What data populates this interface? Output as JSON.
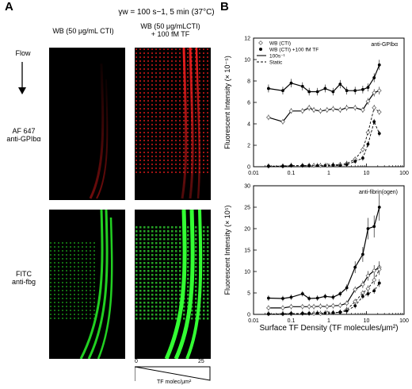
{
  "panel_a": {
    "letter": "A",
    "condition": "γw = 100 s−1, 5 min (37°C)",
    "col1": "WB (50 μg/mL CTI)",
    "col2_line1": "WB (50 μg/mLCTI)",
    "col2_line2": "+ 100 fM TF",
    "flow": "Flow",
    "row1_line1": "AF 647",
    "row1_line2": "anti-GPIbα",
    "row2_line1": "FITC",
    "row2_line2": "anti-fbg",
    "scale_min": "0",
    "scale_max": "25",
    "scale_label": "TF molec/μm²",
    "colors": {
      "red": "#e01818",
      "green": "#22d022"
    }
  },
  "panel_b": {
    "letter": "B",
    "xlabel": "Surface TF Density (TF molecules/μm²)"
  },
  "chart_data": [
    {
      "type": "line",
      "annotation": "anti-GPIbα",
      "ylabel": "Fluorescent Intensity (× 10⁻⁵)",
      "xscale": "log",
      "xlim": [
        0.01,
        100
      ],
      "ylim": [
        0,
        12
      ],
      "xticks": [
        "0.01",
        "0.1",
        "1",
        "10",
        "100"
      ],
      "yticks": [
        0,
        2,
        4,
        6,
        8,
        10,
        12
      ],
      "legend": [
        {
          "label": "WB (CTI)",
          "marker": "open-diamond"
        },
        {
          "label": "WB (CTI) +100 fM TF",
          "marker": "filled-circle"
        },
        {
          "label": "100s⁻¹",
          "line": "solid"
        },
        {
          "label": "Static",
          "line": "dashed"
        }
      ],
      "series": [
        {
          "name": "WB (CTI) 100s⁻¹",
          "marker": "open",
          "dash": false,
          "x": [
            0.025,
            0.06,
            0.1,
            0.2,
            0.3,
            0.4,
            0.6,
            0.9,
            1.3,
            2.0,
            3.0,
            5.0,
            8.0,
            11,
            16,
            22
          ],
          "y": [
            4.6,
            4.2,
            5.2,
            5.2,
            5.5,
            5.3,
            5.2,
            5.3,
            5.4,
            5.3,
            5.5,
            5.5,
            5.3,
            6.1,
            6.9,
            7.1
          ]
        },
        {
          "name": "WB (CTI) +100 fM TF 100s⁻¹",
          "marker": "filled",
          "dash": false,
          "x": [
            0.025,
            0.06,
            0.1,
            0.2,
            0.3,
            0.5,
            0.8,
            1.3,
            2.0,
            3.0,
            5.0,
            8.0,
            11,
            16,
            22
          ],
          "y": [
            7.3,
            7.1,
            7.8,
            7.5,
            7.0,
            7.0,
            7.3,
            7.0,
            7.7,
            7.1,
            7.1,
            7.2,
            7.4,
            8.3,
            9.5
          ]
        },
        {
          "name": "WB (CTI) Static",
          "marker": "open",
          "dash": true,
          "x": [
            0.025,
            0.06,
            0.1,
            0.2,
            0.3,
            0.4,
            0.6,
            0.9,
            1.3,
            2.0,
            3.0,
            5.0,
            8.0,
            11,
            16,
            22
          ],
          "y": [
            0.05,
            0.05,
            0.1,
            0.1,
            0.1,
            0.1,
            0.1,
            0.1,
            0.15,
            0.2,
            0.3,
            0.7,
            1.6,
            3.2,
            5.5,
            5.1
          ]
        },
        {
          "name": "WB (CTI) +100 fM TF Static",
          "marker": "filled",
          "dash": true,
          "x": [
            0.025,
            0.06,
            0.1,
            0.2,
            0.3,
            0.5,
            0.8,
            1.3,
            2.0,
            3.0,
            5.0,
            8.0,
            11,
            16,
            22
          ],
          "y": [
            0.05,
            0.05,
            0.1,
            0.1,
            0.1,
            0.1,
            0.1,
            0.15,
            0.1,
            0.2,
            0.5,
            0.8,
            2.1,
            4.2,
            3.1
          ]
        }
      ]
    },
    {
      "type": "line",
      "annotation": "anti-fibrin(ogen)",
      "ylabel": "Fluorescent Intensity (× 10⁵)",
      "xscale": "log",
      "xlim": [
        0.01,
        100
      ],
      "ylim": [
        0,
        30
      ],
      "xticks": [
        "0.01",
        "0.1",
        "1",
        "10",
        "100"
      ],
      "yticks": [
        0,
        5,
        10,
        15,
        20,
        25,
        30
      ],
      "series": [
        {
          "name": "WB (CTI) 100s⁻¹",
          "marker": "open",
          "dash": false,
          "x": [
            0.025,
            0.06,
            0.1,
            0.2,
            0.3,
            0.4,
            0.6,
            0.9,
            1.3,
            2.0,
            3.0,
            5.0,
            8.0,
            11,
            16,
            22
          ],
          "y": [
            1.5,
            1.5,
            1.8,
            1.8,
            1.8,
            1.8,
            1.9,
            1.8,
            2.0,
            2.1,
            2.6,
            5.8,
            7.0,
            9.0,
            10.2,
            11.0
          ]
        },
        {
          "name": "WB (CTI) +100 fM TF 100s⁻¹",
          "marker": "filled",
          "dash": false,
          "x": [
            0.025,
            0.06,
            0.1,
            0.2,
            0.3,
            0.5,
            0.8,
            1.3,
            2.0,
            3.0,
            5.0,
            8.0,
            11,
            16,
            22
          ],
          "y": [
            3.8,
            3.7,
            4.0,
            4.8,
            3.7,
            3.8,
            4.2,
            4.0,
            4.8,
            6.2,
            11.0,
            14.0,
            20.0,
            20.5,
            25.0
          ]
        },
        {
          "name": "WB (CTI) Static",
          "marker": "open",
          "dash": true,
          "x": [
            0.025,
            0.06,
            0.1,
            0.2,
            0.3,
            0.4,
            0.6,
            0.9,
            1.3,
            2.0,
            3.0,
            5.0,
            8.0,
            11,
            16,
            22
          ],
          "y": [
            0.1,
            0.1,
            0.1,
            0.2,
            0.2,
            0.2,
            0.2,
            0.3,
            0.3,
            0.5,
            1.1,
            3.0,
            5.0,
            6.0,
            8.0,
            10.5
          ]
        },
        {
          "name": "WB (CTI) +100 fM TF Static",
          "marker": "filled",
          "dash": true,
          "x": [
            0.025,
            0.06,
            0.1,
            0.2,
            0.3,
            0.5,
            0.8,
            1.3,
            2.0,
            3.0,
            5.0,
            8.0,
            11,
            16,
            22
          ],
          "y": [
            0.1,
            0.1,
            0.2,
            0.2,
            0.2,
            0.3,
            0.3,
            0.4,
            0.5,
            0.8,
            2.0,
            4.2,
            4.8,
            5.5,
            7.3
          ]
        }
      ]
    }
  ]
}
